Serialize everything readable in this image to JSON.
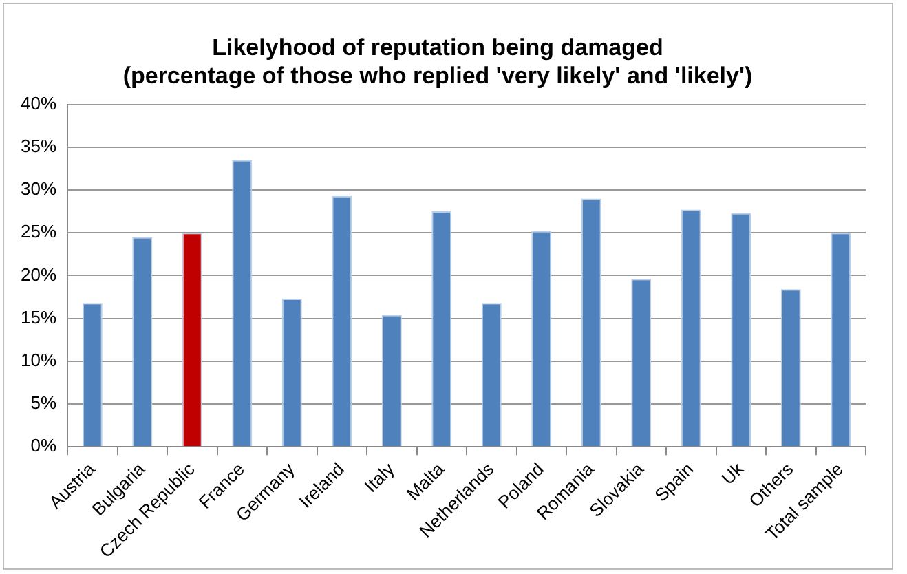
{
  "chart_data": {
    "type": "bar",
    "title": [
      "Likelyhood of reputation being damaged",
      "(percentage of those who replied 'very likely' and 'likely')"
    ],
    "categories": [
      "Austria",
      "Bulgaria",
      "Czech Republic",
      "France",
      "Germany",
      "Ireland",
      "Italy",
      "Malta",
      "Netherlands",
      "Poland",
      "Romania",
      "Slovakia",
      "Spain",
      "Uk",
      "Others",
      "Total sample"
    ],
    "values": [
      16.8,
      24.5,
      25.0,
      33.5,
      17.3,
      29.3,
      15.4,
      27.5,
      16.8,
      25.2,
      29.0,
      19.6,
      27.7,
      27.3,
      18.4,
      25.0
    ],
    "colors": [
      "#4f81bd",
      "#4f81bd",
      "#c00000",
      "#4f81bd",
      "#4f81bd",
      "#4f81bd",
      "#4f81bd",
      "#4f81bd",
      "#4f81bd",
      "#4f81bd",
      "#4f81bd",
      "#4f81bd",
      "#4f81bd",
      "#4f81bd",
      "#4f81bd",
      "#4f81bd"
    ],
    "ylim": [
      0,
      40
    ],
    "yticks": [
      {
        "value": 0,
        "label": "0%"
      },
      {
        "value": 5,
        "label": "5%"
      },
      {
        "value": 10,
        "label": "10%"
      },
      {
        "value": 15,
        "label": "15%"
      },
      {
        "value": 20,
        "label": "20%"
      },
      {
        "value": 25,
        "label": "25%"
      },
      {
        "value": 30,
        "label": "30%"
      },
      {
        "value": 35,
        "label": "35%"
      },
      {
        "value": 40,
        "label": "40%"
      }
    ],
    "grid": "y",
    "legend": false
  }
}
